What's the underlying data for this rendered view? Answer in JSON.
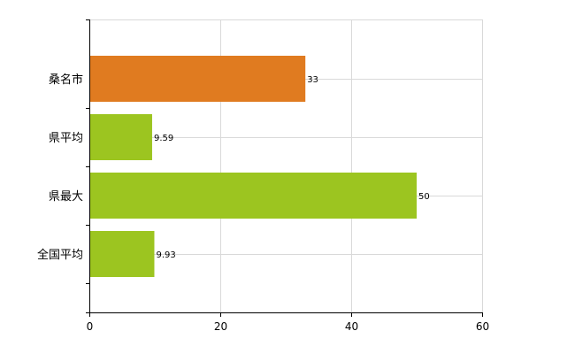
{
  "chart_data": {
    "type": "bar",
    "orientation": "horizontal",
    "categories": [
      "桑名市",
      "県平均",
      "県最大",
      "全国平均"
    ],
    "values": [
      33,
      9.59,
      50,
      9.93
    ],
    "value_labels": [
      "33",
      "9.59",
      "50",
      "9.93"
    ],
    "bar_colors": [
      "#e07b20",
      "#9cc520",
      "#9cc520",
      "#9cc520"
    ],
    "title": "",
    "xlabel": "",
    "ylabel": "",
    "xlim": [
      0,
      60
    ],
    "x_ticks": [
      0,
      20,
      40,
      60
    ],
    "x_tick_labels": [
      "0",
      "20",
      "40",
      "60"
    ],
    "grid": true,
    "legend": "none"
  }
}
